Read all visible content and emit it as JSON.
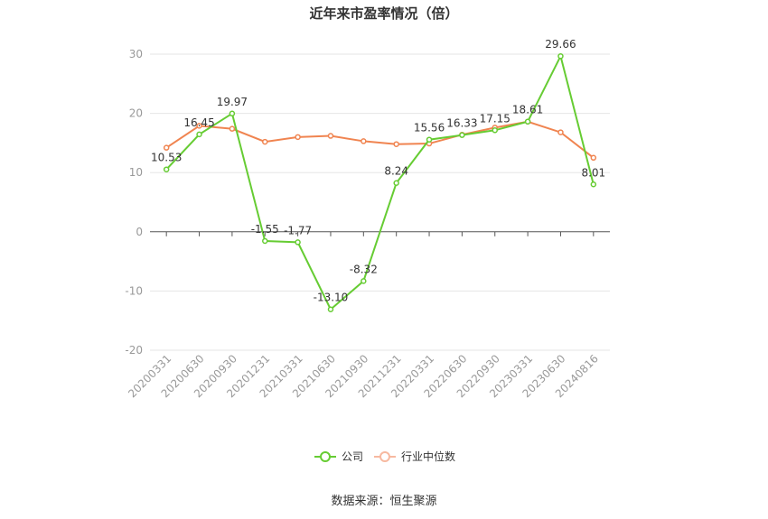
{
  "chart_data": {
    "type": "line",
    "title": "近年来市盈率情况（倍）",
    "categories": [
      "20200331",
      "20200630",
      "20200930",
      "20201231",
      "20210331",
      "20210630",
      "20210930",
      "20211231",
      "20220331",
      "20220630",
      "20220930",
      "20230331",
      "20230630",
      "20240816"
    ],
    "series": [
      {
        "name": "公司",
        "color": "#66cc33",
        "values": [
          10.53,
          16.45,
          19.97,
          -1.55,
          -1.77,
          -13.1,
          -8.32,
          8.24,
          15.56,
          16.33,
          17.15,
          18.61,
          29.66,
          8.01
        ],
        "labels": [
          "10.53",
          "16.45",
          "19.97",
          "-1.55",
          "-1.77",
          "-13.10",
          "-8.32",
          "8.24",
          "15.56",
          "16.33",
          "17.15",
          "18.61",
          "29.66",
          "8.01"
        ]
      },
      {
        "name": "行业中位数",
        "color": "#f08450",
        "values": [
          14.2,
          17.9,
          17.4,
          15.2,
          16.0,
          16.2,
          15.3,
          14.8,
          14.9,
          16.4,
          17.6,
          18.6,
          16.8,
          12.5
        ]
      }
    ],
    "ylim": [
      -20,
      30
    ],
    "yticks": [
      "-20",
      "-10",
      "0",
      "10",
      "20",
      "30"
    ],
    "grid": true,
    "legend": "bottom-center",
    "source": "数据来源：恒生聚源"
  }
}
